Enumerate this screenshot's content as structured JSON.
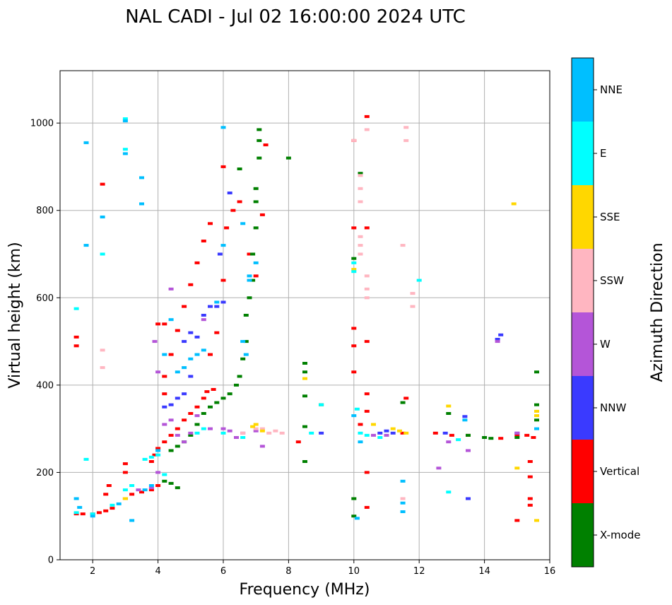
{
  "chart_data": {
    "type": "scatter",
    "title": "NAL CADI - Jul 02 16:00:00 2024 UTC",
    "xlabel": "Frequency (MHz)",
    "ylabel": "Virtual height (km)",
    "xlim": [
      1,
      16
    ],
    "ylim": [
      0,
      1120
    ],
    "xticks": [
      2,
      4,
      6,
      8,
      10,
      12,
      14,
      16
    ],
    "yticks": [
      0,
      200,
      400,
      600,
      800,
      1000
    ],
    "grid": true,
    "colorbar": {
      "title": "Azimuth Direction",
      "categories": [
        {
          "name": "X-mode",
          "color": "#008000"
        },
        {
          "name": "Vertical",
          "color": "#ff0000"
        },
        {
          "name": "NNW",
          "color": "#3a3aff"
        },
        {
          "name": "W",
          "color": "#b455d8"
        },
        {
          "name": "SSW",
          "color": "#ffb6c1"
        },
        {
          "name": "SSE",
          "color": "#ffd700"
        },
        {
          "name": "E",
          "color": "#00ffff"
        },
        {
          "name": "NNE",
          "color": "#00bfff"
        }
      ]
    },
    "series": [
      {
        "name": "Vertical",
        "points": [
          [
            1.5,
            105
          ],
          [
            1.7,
            105
          ],
          [
            2.0,
            105
          ],
          [
            2.2,
            108
          ],
          [
            2.4,
            112
          ],
          [
            2.6,
            118
          ],
          [
            3.0,
            140
          ],
          [
            3.2,
            150
          ],
          [
            3.5,
            155
          ],
          [
            3.8,
            160
          ],
          [
            4.0,
            170
          ],
          [
            3.8,
            225
          ],
          [
            3.9,
            240
          ],
          [
            4.0,
            255
          ],
          [
            4.2,
            270
          ],
          [
            4.4,
            285
          ],
          [
            4.6,
            300
          ],
          [
            4.8,
            320
          ],
          [
            5.0,
            335
          ],
          [
            5.2,
            350
          ],
          [
            5.4,
            370
          ],
          [
            5.5,
            385
          ],
          [
            5.7,
            390
          ],
          [
            3.0,
            200
          ],
          [
            3.0,
            220
          ],
          [
            4.2,
            380
          ],
          [
            4.2,
            420
          ],
          [
            4.4,
            470
          ],
          [
            4.6,
            525
          ],
          [
            4.8,
            580
          ],
          [
            5.0,
            630
          ],
          [
            5.2,
            680
          ],
          [
            5.4,
            730
          ],
          [
            5.6,
            770
          ],
          [
            5.6,
            470
          ],
          [
            5.8,
            520
          ],
          [
            6.0,
            590
          ],
          [
            6.0,
            640
          ],
          [
            6.1,
            760
          ],
          [
            6.3,
            800
          ],
          [
            6.5,
            820
          ],
          [
            6.8,
            700
          ],
          [
            7.0,
            650
          ],
          [
            7.2,
            790
          ],
          [
            7.3,
            950
          ],
          [
            4.0,
            540
          ],
          [
            4.2,
            540
          ],
          [
            10.0,
            960
          ],
          [
            10.0,
            760
          ],
          [
            10.0,
            530
          ],
          [
            10.0,
            490
          ],
          [
            10.0,
            430
          ],
          [
            10.2,
            310
          ],
          [
            10.4,
            1015
          ],
          [
            10.4,
            760
          ],
          [
            10.4,
            500
          ],
          [
            10.4,
            380
          ],
          [
            10.4,
            340
          ],
          [
            10.4,
            200
          ],
          [
            10.4,
            120
          ],
          [
            11.5,
            290
          ],
          [
            11.6,
            370
          ],
          [
            12.5,
            290
          ],
          [
            13.0,
            285
          ],
          [
            13.5,
            285
          ],
          [
            14.5,
            278
          ],
          [
            15.0,
            285
          ],
          [
            15.3,
            285
          ],
          [
            15.5,
            280
          ],
          [
            15.4,
            225
          ],
          [
            15.4,
            190
          ],
          [
            15.4,
            140
          ],
          [
            15.4,
            125
          ],
          [
            15.0,
            90
          ],
          [
            1.5,
            510
          ],
          [
            1.5,
            490
          ],
          [
            2.3,
            860
          ],
          [
            2.5,
            170
          ],
          [
            2.4,
            150
          ],
          [
            6.0,
            900
          ],
          [
            8.3,
            270
          ]
        ]
      },
      {
        "name": "X-mode",
        "points": [
          [
            4.2,
            180
          ],
          [
            4.4,
            175
          ],
          [
            4.6,
            165
          ],
          [
            4.4,
            250
          ],
          [
            4.6,
            260
          ],
          [
            4.8,
            270
          ],
          [
            5.0,
            285
          ],
          [
            5.2,
            310
          ],
          [
            5.4,
            335
          ],
          [
            5.6,
            350
          ],
          [
            5.8,
            360
          ],
          [
            6.0,
            370
          ],
          [
            6.2,
            380
          ],
          [
            6.4,
            400
          ],
          [
            6.5,
            420
          ],
          [
            6.6,
            460
          ],
          [
            6.7,
            500
          ],
          [
            6.7,
            560
          ],
          [
            6.8,
            600
          ],
          [
            6.9,
            640
          ],
          [
            6.9,
            700
          ],
          [
            7.0,
            760
          ],
          [
            7.0,
            820
          ],
          [
            7.0,
            850
          ],
          [
            7.1,
            960
          ],
          [
            7.1,
            985
          ],
          [
            6.5,
            895
          ],
          [
            8.0,
            920
          ],
          [
            7.1,
            920
          ],
          [
            8.5,
            450
          ],
          [
            8.5,
            430
          ],
          [
            8.5,
            375
          ],
          [
            8.5,
            305
          ],
          [
            8.5,
            225
          ],
          [
            9.0,
            355
          ],
          [
            10.0,
            140
          ],
          [
            10.0,
            100
          ],
          [
            10.0,
            690
          ],
          [
            11.5,
            360
          ],
          [
            12.9,
            335
          ],
          [
            13.5,
            285
          ],
          [
            14.0,
            280
          ],
          [
            14.2,
            278
          ],
          [
            15.0,
            280
          ],
          [
            15.6,
            430
          ],
          [
            15.6,
            355
          ],
          [
            15.6,
            320
          ],
          [
            10.2,
            885
          ]
        ]
      },
      {
        "name": "NNW",
        "points": [
          [
            4.2,
            350
          ],
          [
            4.4,
            355
          ],
          [
            4.6,
            370
          ],
          [
            4.8,
            380
          ],
          [
            5.0,
            420
          ],
          [
            5.2,
            510
          ],
          [
            5.4,
            560
          ],
          [
            5.6,
            580
          ],
          [
            5.8,
            580
          ],
          [
            6.0,
            590
          ],
          [
            5.9,
            700
          ],
          [
            6.2,
            840
          ],
          [
            4.8,
            500
          ],
          [
            5.0,
            520
          ],
          [
            9.0,
            290
          ],
          [
            10.8,
            290
          ],
          [
            11.0,
            295
          ],
          [
            11.2,
            290
          ],
          [
            12.8,
            290
          ],
          [
            13.4,
            328
          ],
          [
            13.5,
            140
          ],
          [
            14.4,
            505
          ],
          [
            14.5,
            515
          ],
          [
            15.0,
            290
          ]
        ]
      },
      {
        "name": "W",
        "points": [
          [
            3.4,
            160
          ],
          [
            3.8,
            165
          ],
          [
            4.0,
            200
          ],
          [
            4.2,
            310
          ],
          [
            4.4,
            320
          ],
          [
            4.6,
            285
          ],
          [
            4.8,
            270
          ],
          [
            5.0,
            290
          ],
          [
            5.2,
            330
          ],
          [
            5.4,
            550
          ],
          [
            5.6,
            300
          ],
          [
            6.0,
            300
          ],
          [
            6.2,
            295
          ],
          [
            6.4,
            280
          ],
          [
            6.6,
            290
          ],
          [
            7.0,
            295
          ],
          [
            7.2,
            260
          ],
          [
            10.6,
            285
          ],
          [
            11.0,
            285
          ],
          [
            12.6,
            210
          ],
          [
            12.9,
            270
          ],
          [
            13.5,
            250
          ],
          [
            14.4,
            500
          ],
          [
            15.0,
            290
          ],
          [
            3.9,
            500
          ],
          [
            4.0,
            430
          ],
          [
            4.4,
            620
          ]
        ]
      },
      {
        "name": "SSW",
        "points": [
          [
            2.3,
            440
          ],
          [
            2.3,
            480
          ],
          [
            2.3,
            700
          ],
          [
            6.6,
            290
          ],
          [
            7.0,
            300
          ],
          [
            7.2,
            300
          ],
          [
            7.4,
            290
          ],
          [
            7.6,
            295
          ],
          [
            7.8,
            290
          ],
          [
            10.2,
            880
          ],
          [
            10.2,
            850
          ],
          [
            10.2,
            820
          ],
          [
            10.2,
            740
          ],
          [
            10.2,
            720
          ],
          [
            10.2,
            700
          ],
          [
            10.4,
            650
          ],
          [
            10.4,
            620
          ],
          [
            10.4,
            600
          ],
          [
            10.4,
            985
          ],
          [
            11.6,
            990
          ],
          [
            11.6,
            960
          ],
          [
            11.8,
            610
          ],
          [
            11.8,
            580
          ],
          [
            11.5,
            720
          ],
          [
            11.5,
            140
          ],
          [
            10.0,
            960
          ]
        ]
      },
      {
        "name": "SSE",
        "points": [
          [
            6.9,
            305
          ],
          [
            7.0,
            310
          ],
          [
            7.2,
            295
          ],
          [
            8.5,
            415
          ],
          [
            10.0,
            665
          ],
          [
            10.6,
            310
          ],
          [
            11.2,
            300
          ],
          [
            11.4,
            295
          ],
          [
            11.6,
            290
          ],
          [
            12.9,
            352
          ],
          [
            14.9,
            815
          ],
          [
            15.0,
            210
          ],
          [
            15.6,
            340
          ],
          [
            15.6,
            330
          ],
          [
            15.6,
            90
          ],
          [
            3.0,
            140
          ]
        ]
      },
      {
        "name": "E",
        "points": [
          [
            1.5,
            108
          ],
          [
            2.0,
            105
          ],
          [
            2.6,
            125
          ],
          [
            3.0,
            160
          ],
          [
            3.2,
            170
          ],
          [
            3.6,
            230
          ],
          [
            3.8,
            235
          ],
          [
            4.0,
            240
          ],
          [
            4.2,
            195
          ],
          [
            5.2,
            290
          ],
          [
            5.4,
            300
          ],
          [
            6.0,
            290
          ],
          [
            6.6,
            280
          ],
          [
            8.7,
            290
          ],
          [
            9.0,
            355
          ],
          [
            10.0,
            680
          ],
          [
            10.0,
            660
          ],
          [
            10.1,
            345
          ],
          [
            10.2,
            290
          ],
          [
            10.4,
            285
          ],
          [
            10.8,
            280
          ],
          [
            12.0,
            640
          ],
          [
            12.9,
            155
          ],
          [
            13.2,
            275
          ],
          [
            3.0,
            1010
          ],
          [
            3.0,
            940
          ],
          [
            1.8,
            230
          ],
          [
            2.3,
            700
          ],
          [
            1.5,
            575
          ]
        ]
      },
      {
        "name": "NNE",
        "points": [
          [
            1.5,
            140
          ],
          [
            1.6,
            120
          ],
          [
            2.0,
            100
          ],
          [
            2.8,
            128
          ],
          [
            3.0,
            1005
          ],
          [
            3.0,
            930
          ],
          [
            3.5,
            875
          ],
          [
            3.5,
            815
          ],
          [
            3.2,
            90
          ],
          [
            3.6,
            160
          ],
          [
            3.8,
            170
          ],
          [
            4.0,
            250
          ],
          [
            4.2,
            470
          ],
          [
            4.4,
            550
          ],
          [
            4.6,
            430
          ],
          [
            4.8,
            440
          ],
          [
            5.0,
            460
          ],
          [
            5.2,
            470
          ],
          [
            5.4,
            480
          ],
          [
            5.8,
            590
          ],
          [
            6.0,
            720
          ],
          [
            6.0,
            990
          ],
          [
            6.6,
            770
          ],
          [
            6.8,
            650
          ],
          [
            6.8,
            640
          ],
          [
            7.0,
            680
          ],
          [
            6.6,
            500
          ],
          [
            6.7,
            470
          ],
          [
            1.8,
            720
          ],
          [
            1.8,
            955
          ],
          [
            2.3,
            785
          ],
          [
            10.0,
            330
          ],
          [
            10.1,
            95
          ],
          [
            10.2,
            270
          ],
          [
            11.5,
            180
          ],
          [
            11.5,
            130
          ],
          [
            11.5,
            110
          ],
          [
            13.4,
            320
          ],
          [
            15.6,
            300
          ]
        ]
      }
    ]
  }
}
